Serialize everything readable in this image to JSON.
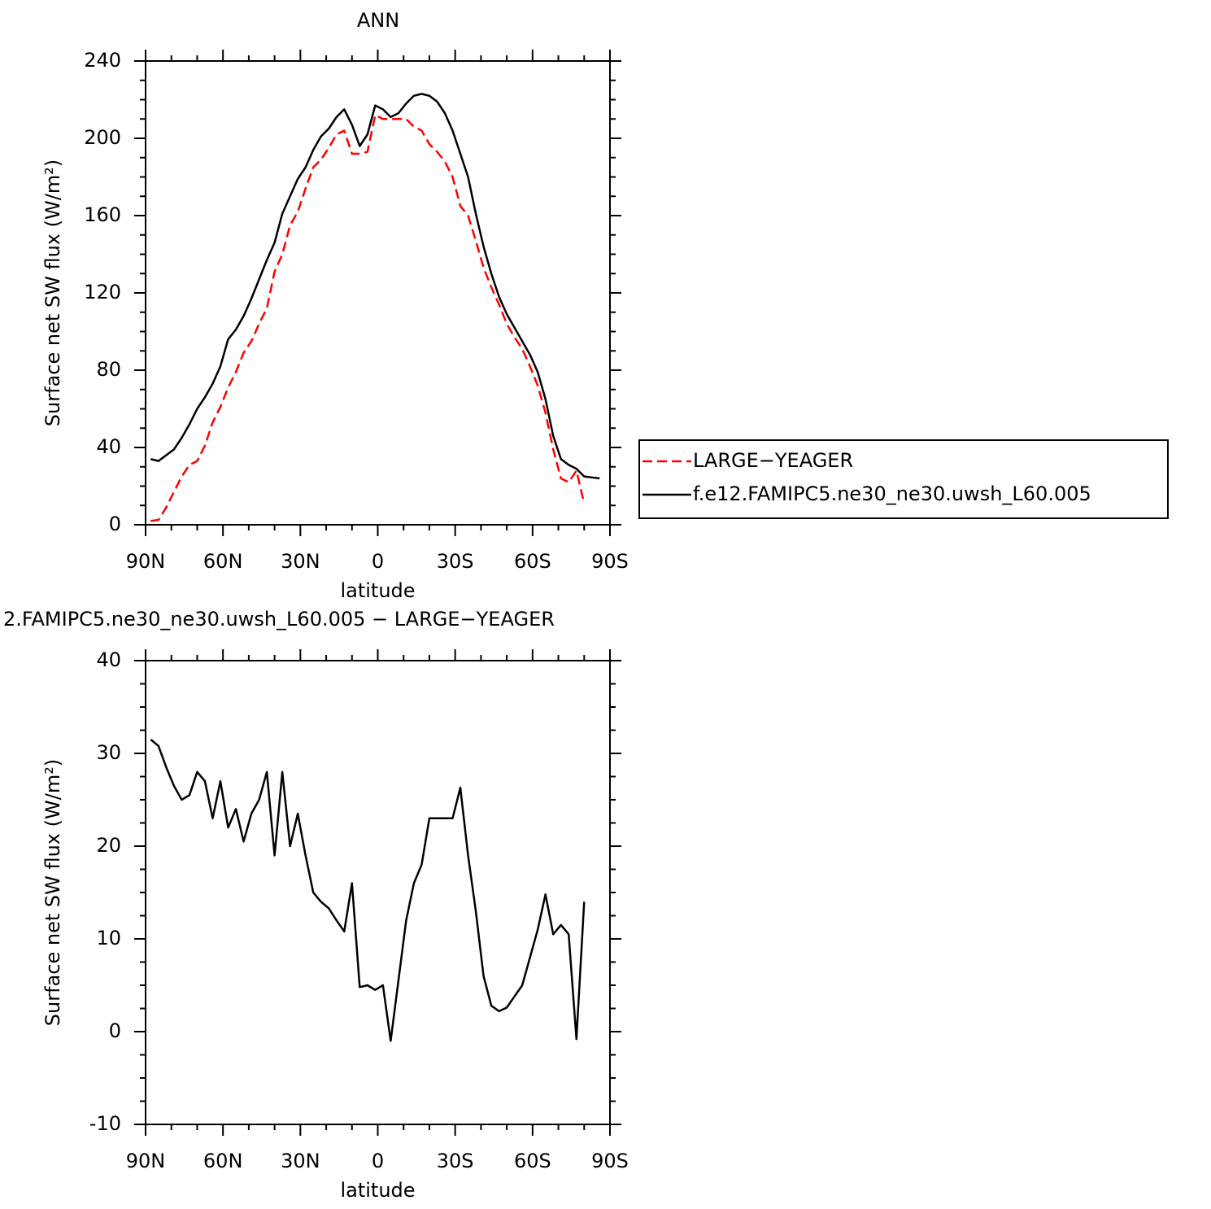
{
  "chart_data": [
    {
      "type": "line",
      "title": "ANN",
      "xlabel": "latitude",
      "ylabel": "Surface net SW flux (W/m²)",
      "x": [
        88,
        85,
        82,
        79,
        76,
        73,
        70,
        67,
        64,
        61,
        58,
        55,
        52,
        49,
        46,
        43,
        40,
        37,
        34,
        31,
        28,
        25,
        22,
        19,
        16,
        13,
        10,
        7,
        4,
        1,
        -2,
        -5,
        -8,
        -11,
        -14,
        -17,
        -20,
        -23,
        -26,
        -29,
        -32,
        -35,
        -38,
        -41,
        -44,
        -47,
        -50,
        -53,
        -56,
        -59,
        -62,
        -65,
        -68,
        -71,
        -74,
        -77,
        -80,
        -83,
        -86
      ],
      "xlim": [
        90,
        -90
      ],
      "xticks": [
        {
          "value": 90,
          "label": "90N"
        },
        {
          "value": 60,
          "label": "60N"
        },
        {
          "value": 30,
          "label": "30N"
        },
        0,
        {
          "value": -30,
          "label": "30S"
        },
        {
          "value": -60,
          "label": "60S"
        },
        {
          "value": -90,
          "label": "90S"
        }
      ],
      "ylim": [
        0,
        240
      ],
      "yticks": [
        0,
        40,
        80,
        120,
        160,
        200,
        240
      ],
      "legend": "right",
      "series": [
        {
          "name": "LARGE−YEAGER",
          "color": "#ff0000",
          "style": "dashed",
          "values": [
            2,
            2.5,
            9,
            17,
            25,
            31,
            33,
            41,
            53,
            61,
            71,
            79,
            89,
            95,
            104,
            112,
            131,
            140,
            155,
            162,
            174,
            185,
            189,
            195,
            202,
            204,
            192,
            192,
            193,
            212,
            210,
            210,
            210,
            210,
            206,
            204,
            197,
            193,
            188,
            180,
            165,
            160,
            147,
            133,
            123,
            114,
            104,
            97,
            91,
            82,
            72,
            58,
            39,
            24,
            22,
            28,
            11,
            null,
            null
          ]
        },
        {
          "name": "f.e12.FAMIPC5.ne30_ne30.uwsh_L60.005",
          "color": "#000000",
          "style": "solid",
          "values": [
            34,
            33,
            36,
            39,
            45,
            52,
            60,
            66,
            73,
            82,
            96,
            101,
            108,
            117,
            127,
            137,
            146,
            161,
            170,
            179,
            185,
            194,
            201,
            205,
            211,
            215,
            207,
            196,
            202,
            217,
            215,
            211,
            213,
            218,
            222,
            223,
            222,
            219,
            213,
            204,
            192,
            180,
            161,
            144,
            130,
            118,
            109,
            102,
            95,
            88,
            79,
            65,
            46,
            34,
            31,
            29,
            25,
            24.5,
            24
          ]
        }
      ]
    },
    {
      "type": "line",
      "title": "2.FAMIPC5.ne30_ne30.uwsh_L60.005 − LARGE−YEAGER",
      "xlabel": "latitude",
      "ylabel": "Surface net SW flux (W/m²)",
      "x": [
        88,
        85,
        82,
        79,
        76,
        73,
        70,
        67,
        64,
        61,
        58,
        55,
        52,
        49,
        46,
        43,
        40,
        37,
        34,
        31,
        28,
        25,
        22,
        19,
        16,
        13,
        10,
        7,
        4,
        1,
        -2,
        -5,
        -8,
        -11,
        -14,
        -17,
        -20,
        -23,
        -26,
        -29,
        -32,
        -35,
        -38,
        -41,
        -44,
        -47,
        -50,
        -53,
        -56,
        -59,
        -62,
        -65,
        -68,
        -71,
        -74,
        -77,
        -80,
        -83,
        -86
      ],
      "xlim": [
        90,
        -90
      ],
      "xticks": [
        {
          "value": 90,
          "label": "90N"
        },
        {
          "value": 60,
          "label": "60N"
        },
        {
          "value": 30,
          "label": "30N"
        },
        0,
        {
          "value": -30,
          "label": "30S"
        },
        {
          "value": -60,
          "label": "60S"
        },
        {
          "value": -90,
          "label": "90S"
        }
      ],
      "ylim": [
        -10,
        40
      ],
      "yticks": [
        -10,
        0,
        10,
        20,
        30,
        40
      ],
      "series": [
        {
          "color": "#000000",
          "style": "solid",
          "values": [
            31.5,
            30.8,
            28.5,
            26.5,
            25,
            25.5,
            28,
            27,
            23,
            27,
            22,
            24,
            20.5,
            23.5,
            25,
            28,
            19,
            28,
            20,
            23.5,
            19,
            15,
            14,
            13.3,
            12,
            10.8,
            16,
            4.8,
            5,
            4.5,
            5,
            -1,
            5.5,
            12,
            16,
            18,
            23,
            23,
            23,
            23,
            26.3,
            19,
            13,
            6,
            2.8,
            2.2,
            2.6,
            3.8,
            5,
            8,
            11,
            14.8,
            10.5,
            11.5,
            10.5,
            -0.8,
            14,
            null,
            null
          ]
        }
      ]
    }
  ]
}
